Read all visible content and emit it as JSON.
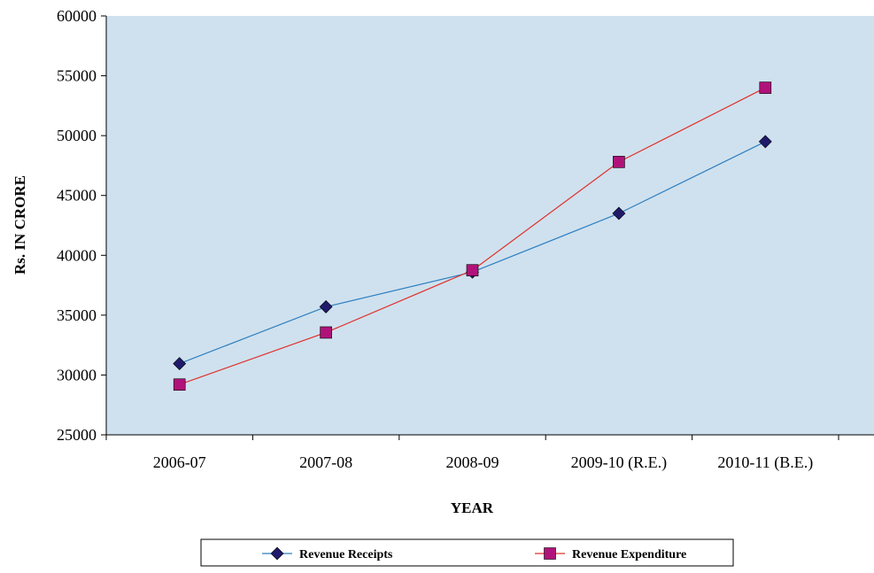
{
  "chart_data": {
    "type": "line",
    "title": "",
    "xlabel": "YEAR",
    "ylabel": "Rs. IN CRORE",
    "categories": [
      "2006-07",
      "2007-08",
      "2008-09",
      "2009-10 (R.E.)",
      "2010-11 (B.E.)"
    ],
    "ylim": [
      25000,
      60000
    ],
    "yticks": [
      25000,
      30000,
      35000,
      40000,
      45000,
      50000,
      55000,
      60000
    ],
    "grid": false,
    "plot_background": "#cfe1ee",
    "legend_position": "bottom",
    "series": [
      {
        "name": "Revenue Receipts",
        "color": "#2f7fc0",
        "marker_color": "#1f1a6b",
        "marker": "diamond",
        "values": [
          30950,
          35700,
          38600,
          43500,
          49500
        ]
      },
      {
        "name": "Revenue Expenditure",
        "color": "#e0302b",
        "marker_color": "#b0127a",
        "marker": "square",
        "values": [
          29200,
          33550,
          38750,
          47800,
          54000
        ]
      }
    ]
  }
}
